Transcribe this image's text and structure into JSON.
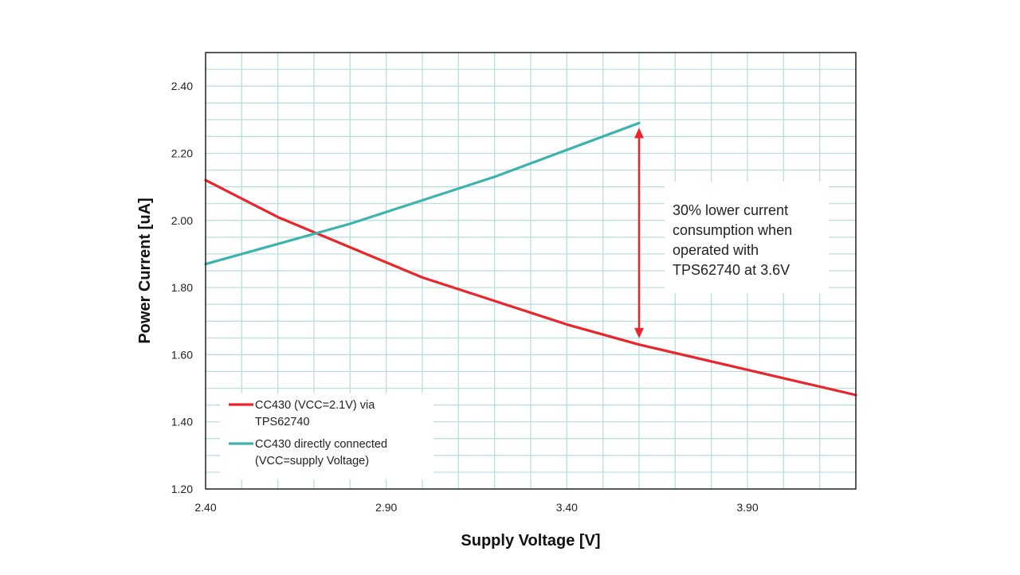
{
  "chart_data": {
    "type": "line",
    "xlabel": "Supply Voltage [V]",
    "ylabel": "Power Current [uA]",
    "xlim": [
      2.4,
      4.2
    ],
    "ylim": [
      1.2,
      2.5
    ],
    "x_ticks": [
      "2.40",
      "2.90",
      "3.40",
      "3.90"
    ],
    "y_ticks": [
      "1.20",
      "1.40",
      "1.60",
      "1.80",
      "2.00",
      "2.20",
      "2.40"
    ],
    "grid": true,
    "legend_position": "bottom-left",
    "series": [
      {
        "name_lines": [
          "CC430 (VCC=2.1V) via",
          "TPS62740"
        ],
        "color": "#e8262b",
        "x": [
          2.4,
          2.6,
          2.8,
          3.0,
          3.2,
          3.4,
          3.6,
          3.8,
          4.0,
          4.2
        ],
        "y": [
          2.12,
          2.01,
          1.92,
          1.83,
          1.76,
          1.69,
          1.63,
          1.58,
          1.53,
          1.48
        ]
      },
      {
        "name_lines": [
          "CC430 directly connected",
          "(VCC=supply Voltage)"
        ],
        "color": "#3db3b0",
        "x": [
          2.4,
          2.6,
          2.8,
          3.0,
          3.2,
          3.4,
          3.6
        ],
        "y": [
          1.87,
          1.93,
          1.99,
          2.06,
          2.13,
          2.21,
          2.29
        ]
      }
    ],
    "annotation": {
      "lines": [
        "30% lower current",
        "consumption when",
        "operated with",
        "TPS62740 at 3.6V"
      ],
      "arrow_x": 3.6,
      "arrow_from": 1.63,
      "arrow_to": 2.29,
      "color": "#e8262b"
    },
    "background_color": "#ffffff",
    "grid_color": "#b7dcdc"
  }
}
